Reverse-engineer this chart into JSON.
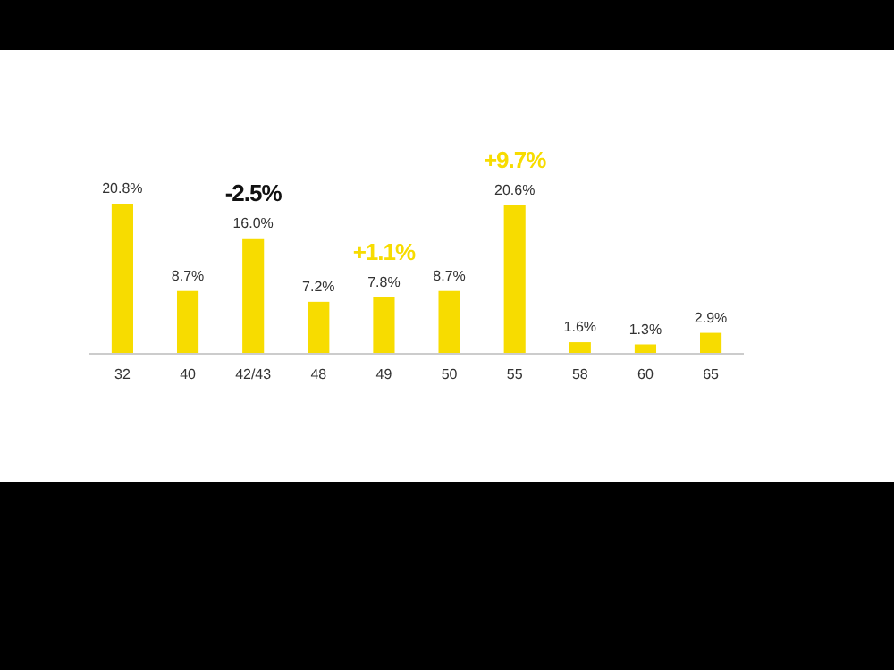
{
  "chart_data": {
    "type": "bar",
    "categories": [
      "32",
      "40",
      "42/43",
      "48",
      "49",
      "50",
      "55",
      "58",
      "60",
      "65"
    ],
    "values": [
      20.8,
      8.7,
      16.0,
      7.2,
      7.8,
      8.7,
      20.6,
      1.6,
      1.3,
      2.9
    ],
    "value_labels": [
      "20.8%",
      "8.7%",
      "16.0%",
      "7.2%",
      "7.8%",
      "8.7%",
      "20.6%",
      "1.6%",
      "1.3%",
      "2.9%"
    ],
    "color": "#f7dc00",
    "annotations": [
      {
        "text": "-2.5%",
        "x": "42/43",
        "y": 16.0
      },
      {
        "text": "+1.1%",
        "x": "49",
        "y": 7.8
      },
      {
        "text": "+9.7%",
        "x": "55",
        "y": 20.6
      }
    ]
  }
}
